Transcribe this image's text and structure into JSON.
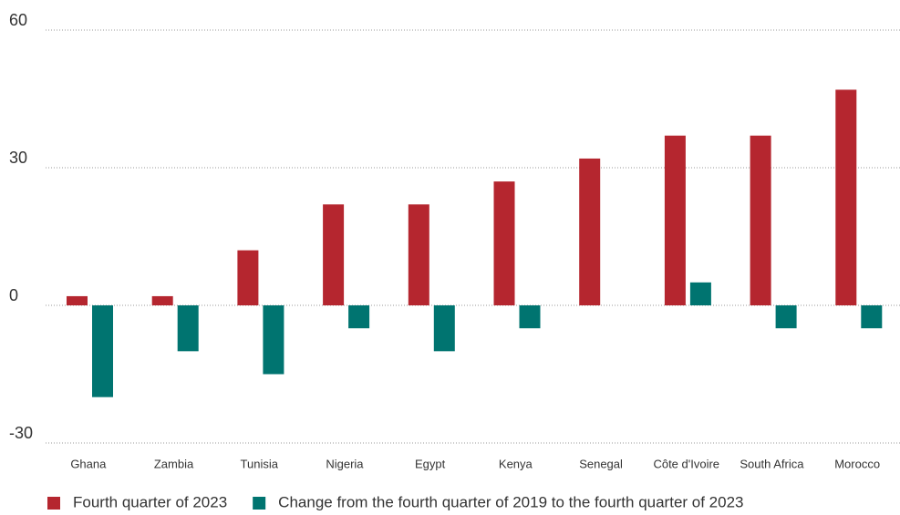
{
  "chart_data": {
    "type": "bar",
    "categories": [
      "Ghana",
      "Zambia",
      "Tunisia",
      "Nigeria",
      "Egypt",
      "Kenya",
      "Senegal",
      "Côte d'Ivoire",
      "South Africa",
      "Morocco"
    ],
    "series": [
      {
        "name": "Fourth quarter of 2023",
        "color": "#b5262f",
        "values": [
          2,
          2,
          12,
          22,
          22,
          27,
          32,
          37,
          37,
          47
        ]
      },
      {
        "name": "Change from the fourth quarter of 2019 to the fourth quarter of 2023",
        "color": "#007470",
        "values": [
          -20,
          -10,
          -15,
          -5,
          -10,
          -5,
          0,
          5,
          -5,
          -5
        ]
      }
    ],
    "ylim": [
      -30,
      60
    ],
    "yticks": [
      -30,
      0,
      30,
      60
    ],
    "grid": true
  }
}
